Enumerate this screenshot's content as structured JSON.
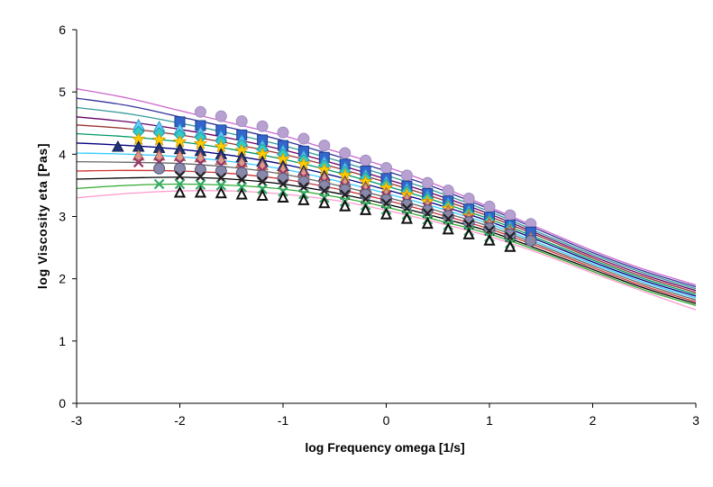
{
  "chart_data": {
    "type": "line",
    "title": "",
    "xlabel": "log Frequency omega [1/s]",
    "ylabel": "log Viscosity eta [Pas]",
    "xlim": [
      -3,
      3
    ],
    "ylim": [
      0,
      6
    ],
    "xticks": [
      "-3",
      "-2",
      "-1",
      "0",
      "1",
      "2",
      "3"
    ],
    "yticks": [
      "0",
      "1",
      "2",
      "3",
      "4",
      "5",
      "6"
    ],
    "grid": false,
    "legend": "none",
    "fit_curves": {
      "x": [
        -3,
        -2.5,
        -2,
        -1.5,
        -1,
        -0.5,
        0,
        0.5,
        1,
        1.5,
        2,
        2.5,
        3
      ],
      "series": [
        {
          "color": "#cc66cc",
          "values": [
            5.05,
            4.9,
            4.7,
            4.5,
            4.3,
            4.05,
            3.8,
            3.5,
            3.15,
            2.8,
            2.45,
            2.15,
            1.9
          ]
        },
        {
          "color": "#333399",
          "values": [
            4.9,
            4.78,
            4.6,
            4.42,
            4.22,
            3.98,
            3.73,
            3.45,
            3.12,
            2.77,
            2.42,
            2.12,
            1.87
          ]
        },
        {
          "color": "#339999",
          "values": [
            4.75,
            4.65,
            4.5,
            4.33,
            4.14,
            3.91,
            3.66,
            3.39,
            3.08,
            2.73,
            2.39,
            2.09,
            1.84
          ]
        },
        {
          "color": "#660066",
          "values": [
            4.6,
            4.52,
            4.4,
            4.25,
            4.07,
            3.85,
            3.6,
            3.34,
            3.04,
            2.7,
            2.36,
            2.06,
            1.81
          ]
        },
        {
          "color": "#993333",
          "values": [
            4.47,
            4.41,
            4.31,
            4.17,
            4.0,
            3.79,
            3.55,
            3.29,
            3.0,
            2.67,
            2.33,
            2.03,
            1.78
          ]
        },
        {
          "color": "#009966",
          "values": [
            4.33,
            4.28,
            4.2,
            4.08,
            3.92,
            3.72,
            3.49,
            3.24,
            2.96,
            2.63,
            2.3,
            2.0,
            1.75
          ]
        },
        {
          "color": "#000080",
          "values": [
            4.18,
            4.14,
            4.08,
            3.98,
            3.84,
            3.65,
            3.43,
            3.19,
            2.92,
            2.6,
            2.27,
            1.97,
            1.72
          ]
        },
        {
          "color": "#33ccff",
          "values": [
            4.02,
            4.0,
            3.96,
            3.88,
            3.76,
            3.58,
            3.37,
            3.14,
            2.88,
            2.56,
            2.24,
            1.94,
            1.69
          ]
        },
        {
          "color": "#666666",
          "values": [
            3.88,
            3.87,
            3.85,
            3.79,
            3.68,
            3.51,
            3.31,
            3.09,
            2.84,
            2.53,
            2.21,
            1.91,
            1.66
          ]
        },
        {
          "color": "#cc3333",
          "values": [
            3.73,
            3.74,
            3.73,
            3.69,
            3.6,
            3.45,
            3.26,
            3.04,
            2.8,
            2.5,
            2.18,
            1.88,
            1.63
          ]
        },
        {
          "color": "#000000",
          "values": [
            3.6,
            3.62,
            3.63,
            3.6,
            3.52,
            3.38,
            3.2,
            2.99,
            2.76,
            2.46,
            2.15,
            1.85,
            1.6
          ]
        },
        {
          "color": "#33aa33",
          "values": [
            3.45,
            3.5,
            3.52,
            3.5,
            3.44,
            3.32,
            3.15,
            2.94,
            2.72,
            2.43,
            2.12,
            1.82,
            1.57
          ]
        },
        {
          "color": "#ff99cc",
          "values": [
            3.3,
            3.37,
            3.41,
            3.41,
            3.36,
            3.26,
            3.1,
            2.9,
            2.68,
            2.4,
            2.09,
            1.79,
            1.5
          ]
        }
      ]
    },
    "series": [
      {
        "marker": "circle",
        "color": "#b8a0d0",
        "stroke": "#9f8fc0",
        "x": [
          -1.8,
          -1.6,
          -1.4,
          -1.2,
          -1.0,
          -0.8,
          -0.6,
          -0.4,
          -0.2,
          0.0,
          0.2,
          0.4,
          0.6,
          0.8,
          1.0,
          1.2,
          1.4
        ],
        "y": [
          4.68,
          4.61,
          4.53,
          4.45,
          4.35,
          4.25,
          4.14,
          4.02,
          3.9,
          3.78,
          3.66,
          3.54,
          3.42,
          3.29,
          3.16,
          3.02,
          2.88
        ]
      },
      {
        "marker": "square",
        "color": "#3366cc",
        "stroke": "#1f3f8f",
        "x": [
          -2.0,
          -1.8,
          -1.6,
          -1.4,
          -1.2,
          -1.0,
          -0.8,
          -0.6,
          -0.4,
          -0.2,
          0.0,
          0.2,
          0.4,
          0.6,
          0.8,
          1.0,
          1.2,
          1.4
        ],
        "y": [
          4.52,
          4.46,
          4.39,
          4.31,
          4.23,
          4.14,
          4.05,
          3.95,
          3.84,
          3.73,
          3.61,
          3.49,
          3.37,
          3.25,
          3.12,
          2.99,
          2.86,
          2.75
        ]
      },
      {
        "marker": "triangle",
        "color": "#66ccff",
        "stroke": "#3399cc",
        "x": [
          -2.4,
          -2.2,
          -2.0,
          -1.8,
          -1.6,
          -1.4,
          -1.2,
          -1.0,
          -0.8,
          -0.6,
          -0.4,
          -0.2,
          0.0,
          0.2,
          0.4,
          0.6,
          0.8,
          1.0,
          1.2
        ],
        "y": [
          4.47,
          4.44,
          4.4,
          4.35,
          4.29,
          4.22,
          4.14,
          4.06,
          3.97,
          3.88,
          3.78,
          3.67,
          3.56,
          3.45,
          3.33,
          3.21,
          3.09,
          2.96,
          2.84
        ]
      },
      {
        "marker": "diamond",
        "color": "#33cccc",
        "stroke": "#209999",
        "x": [
          -2.4,
          -2.2,
          -2.0,
          -1.8,
          -1.6,
          -1.4,
          -1.2,
          -1.0,
          -0.8,
          -0.6,
          -0.4,
          -0.2,
          0.0,
          0.2,
          0.4,
          0.6,
          0.8,
          1.0,
          1.2
        ],
        "y": [
          4.36,
          4.34,
          4.31,
          4.27,
          4.21,
          4.15,
          4.08,
          4.0,
          3.91,
          3.82,
          3.72,
          3.62,
          3.51,
          3.4,
          3.29,
          3.17,
          3.05,
          2.93,
          2.8
        ]
      },
      {
        "marker": "star",
        "color": "#ffcc00",
        "stroke": "#cc9900",
        "x": [
          -2.4,
          -2.2,
          -2.0,
          -1.8,
          -1.6,
          -1.4,
          -1.2,
          -1.0,
          -0.8,
          -0.6,
          -0.4,
          -0.2,
          0.0,
          0.2,
          0.4,
          0.6,
          0.8,
          1.0,
          1.2
        ],
        "y": [
          4.24,
          4.23,
          4.2,
          4.17,
          4.12,
          4.06,
          4.0,
          3.92,
          3.84,
          3.75,
          3.66,
          3.56,
          3.46,
          3.35,
          3.24,
          3.13,
          3.01,
          2.89,
          2.77
        ]
      },
      {
        "marker": "triangle",
        "color": "#223377",
        "stroke": "#111a44",
        "x": [
          -2.6,
          -2.4,
          -2.2,
          -2.0,
          -1.8,
          -1.6,
          -1.4,
          -1.2,
          -1.0,
          -0.8,
          -0.6,
          -0.4,
          -0.2,
          0.0,
          0.2,
          0.4,
          0.6,
          0.8,
          1.0,
          1.2
        ],
        "y": [
          4.12,
          4.12,
          4.1,
          4.08,
          4.05,
          4.0,
          3.95,
          3.88,
          3.81,
          3.73,
          3.65,
          3.56,
          3.47,
          3.37,
          3.27,
          3.17,
          3.06,
          2.95,
          2.84,
          2.72
        ]
      },
      {
        "marker": "triangle",
        "color": "#d99a8a",
        "stroke": "#a06050",
        "x": [
          -2.4,
          -2.2,
          -2.0,
          -1.8,
          -1.6,
          -1.4,
          -1.2,
          -1.0,
          -0.8,
          -0.6,
          -0.4,
          -0.2,
          0.0,
          0.2,
          0.4,
          0.6,
          0.8,
          1.0,
          1.2,
          1.4
        ],
        "y": [
          3.98,
          3.98,
          3.97,
          3.95,
          3.91,
          3.87,
          3.82,
          3.76,
          3.7,
          3.62,
          3.55,
          3.46,
          3.38,
          3.29,
          3.19,
          3.09,
          2.99,
          2.88,
          2.77,
          2.66
        ]
      },
      {
        "marker": "x",
        "color": "#993366",
        "stroke": "#993366",
        "x": [
          -2.4,
          -2.2,
          -2.0,
          -1.8,
          -1.6,
          -1.4,
          -1.2,
          -1.0,
          -0.8,
          -0.6,
          -0.4,
          -0.2,
          0.0,
          0.2,
          0.4,
          0.6,
          0.8,
          1.0,
          1.2
        ],
        "y": [
          3.87,
          3.87,
          3.86,
          3.85,
          3.82,
          3.78,
          3.74,
          3.69,
          3.63,
          3.56,
          3.49,
          3.41,
          3.33,
          3.24,
          3.15,
          3.05,
          2.95,
          2.85,
          2.74
        ]
      },
      {
        "marker": "circle",
        "color": "#8888aa",
        "stroke": "#555577",
        "x": [
          -2.2,
          -2.0,
          -1.8,
          -1.6,
          -1.4,
          -1.2,
          -1.0,
          -0.8,
          -0.6,
          -0.4,
          -0.2,
          0.0,
          0.2,
          0.4,
          0.6,
          0.8,
          1.0,
          1.2,
          1.4
        ],
        "y": [
          3.77,
          3.77,
          3.75,
          3.73,
          3.7,
          3.66,
          3.61,
          3.56,
          3.49,
          3.43,
          3.35,
          3.27,
          3.19,
          3.1,
          3.01,
          2.91,
          2.81,
          2.71,
          2.61
        ]
      },
      {
        "marker": "x",
        "color": "#222222",
        "stroke": "#222222",
        "x": [
          -2.0,
          -1.8,
          -1.6,
          -1.4,
          -1.2,
          -1.0,
          -0.8,
          -0.6,
          -0.4,
          -0.2,
          0.0,
          0.2,
          0.4,
          0.6,
          0.8,
          1.0,
          1.2
        ],
        "y": [
          3.65,
          3.64,
          3.62,
          3.59,
          3.56,
          3.52,
          3.47,
          3.41,
          3.35,
          3.28,
          3.21,
          3.13,
          3.05,
          2.96,
          2.87,
          2.77,
          2.67
        ]
      },
      {
        "marker": "x",
        "color": "#33aa66",
        "stroke": "#33aa66",
        "x": [
          -2.2,
          -2.0,
          -1.8,
          -1.6,
          -1.4,
          -1.2,
          -1.0,
          -0.8,
          -0.6,
          -0.4,
          -0.2,
          0.0,
          0.2,
          0.4,
          0.6,
          0.8,
          1.0,
          1.2
        ],
        "y": [
          3.52,
          3.52,
          3.51,
          3.5,
          3.47,
          3.44,
          3.4,
          3.36,
          3.3,
          3.24,
          3.18,
          3.11,
          3.03,
          2.95,
          2.86,
          2.77,
          2.67,
          2.57
        ]
      },
      {
        "marker": "triangle-open",
        "color": "#ffffff",
        "stroke": "#111111",
        "x": [
          -2.0,
          -1.8,
          -1.6,
          -1.4,
          -1.2,
          -1.0,
          -0.8,
          -0.6,
          -0.4,
          -0.2,
          0.0,
          0.2,
          0.4,
          0.6,
          0.8,
          1.0,
          1.2
        ],
        "y": [
          3.39,
          3.39,
          3.38,
          3.36,
          3.34,
          3.31,
          3.27,
          3.22,
          3.17,
          3.11,
          3.04,
          2.97,
          2.89,
          2.8,
          2.72,
          2.62,
          2.52
        ]
      }
    ]
  }
}
